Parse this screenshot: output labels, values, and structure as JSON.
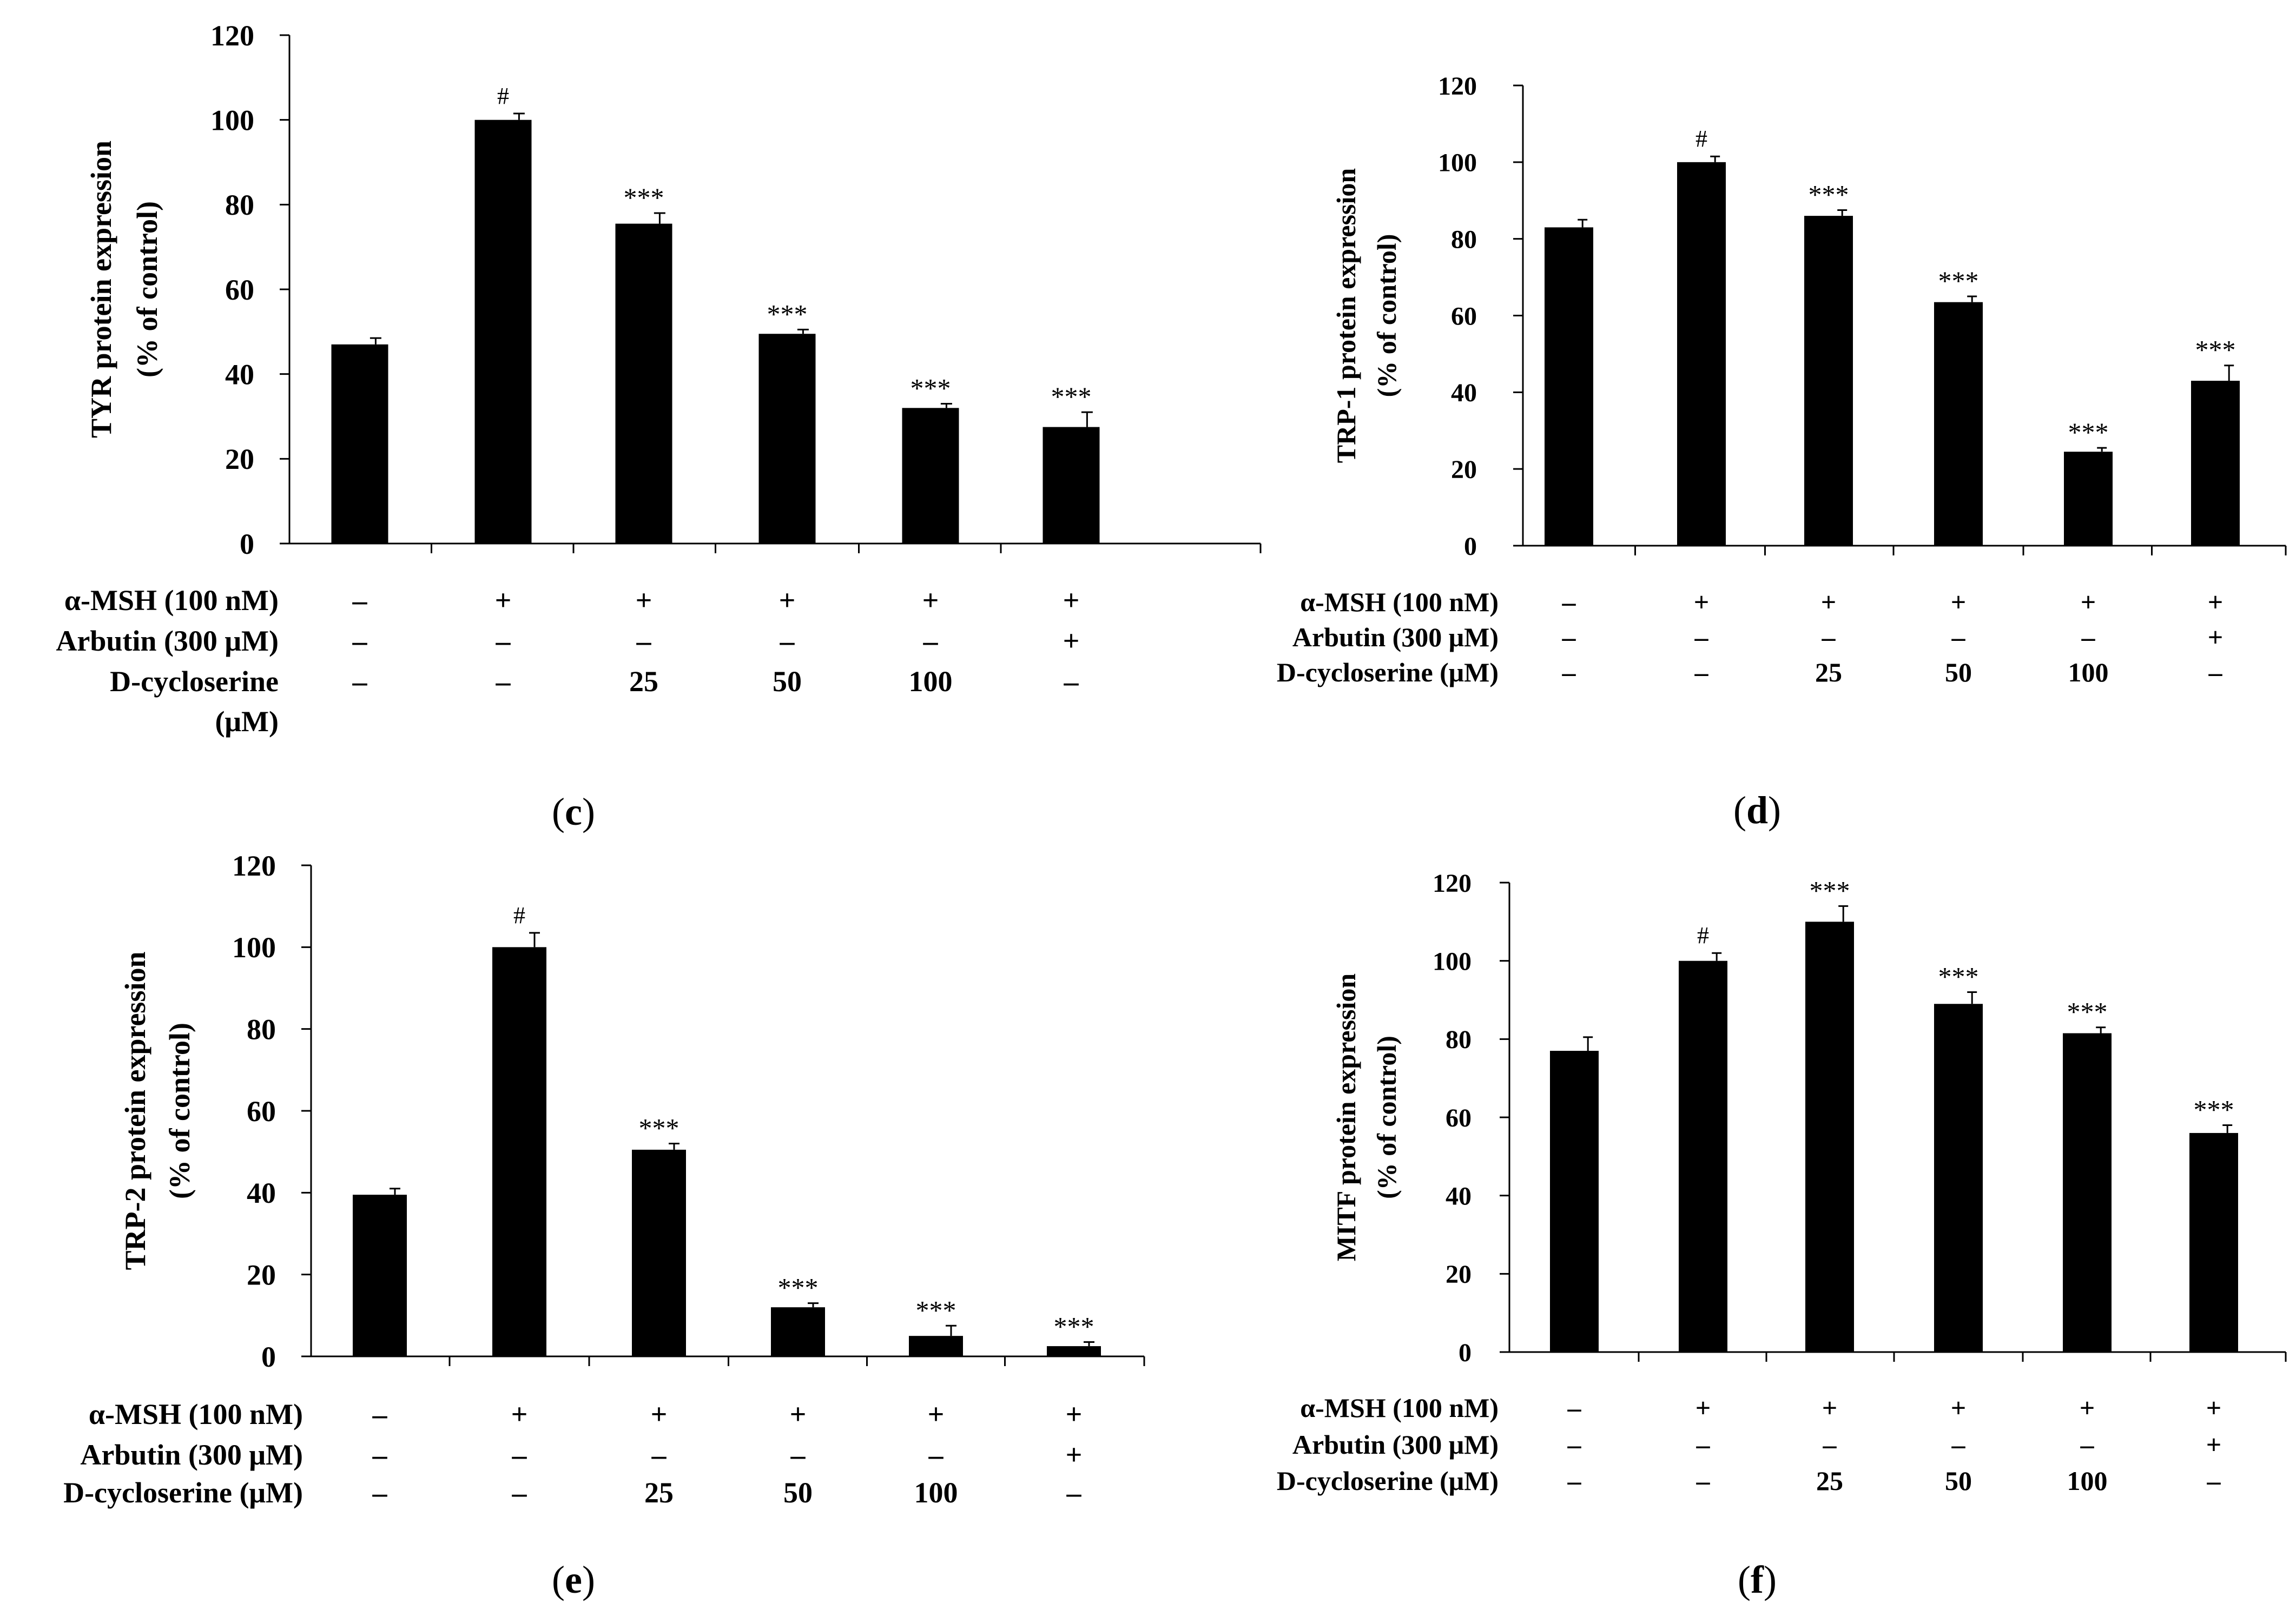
{
  "colors": {
    "bar": "#000000",
    "axis": "#000000",
    "background": "#ffffff"
  },
  "chart_data": [
    {
      "id": "c",
      "type": "bar",
      "panel_label": "(c)",
      "panel_letter": "c",
      "ylabel_line1": "TYR protein expression",
      "ylabel_line2": "(% of control)",
      "ylim": [
        0,
        120
      ],
      "yticks": [
        0,
        20,
        40,
        60,
        80,
        100,
        120
      ],
      "values": [
        47,
        100,
        75.5,
        49.5,
        32,
        27.5
      ],
      "errors": [
        1.5,
        1.5,
        2.5,
        1,
        1,
        3.5
      ],
      "annotations": [
        "",
        "#",
        "***",
        "***",
        "***",
        "***"
      ],
      "treatments": [
        {
          "label": "α-MSH (100 nM)",
          "values": [
            "–",
            "+",
            "+",
            "+",
            "+",
            "+"
          ]
        },
        {
          "label": "Arbutin (300 μM)",
          "values": [
            "–",
            "–",
            "–",
            "–",
            "–",
            "+"
          ]
        },
        {
          "label": "D-cycloserine",
          "label_cont": "(μM)",
          "values": [
            "–",
            "–",
            "25",
            "50",
            "100",
            "–"
          ]
        }
      ]
    },
    {
      "id": "d",
      "type": "bar",
      "panel_label": "(d)",
      "panel_letter": "d",
      "ylabel_line1": "TRP-1 protein expression",
      "ylabel_line2": "(% of control)",
      "ylim": [
        0,
        120
      ],
      "yticks": [
        0,
        20,
        40,
        60,
        80,
        100,
        120
      ],
      "values": [
        83,
        100,
        86,
        63.5,
        24.5,
        43
      ],
      "errors": [
        2,
        1.5,
        1.5,
        1.5,
        1,
        4
      ],
      "annotations": [
        "",
        "#",
        "***",
        "***",
        "***",
        "***"
      ],
      "treatments": [
        {
          "label": "α-MSH (100 nM)",
          "values": [
            "–",
            "+",
            "+",
            "+",
            "+",
            "+"
          ]
        },
        {
          "label": "Arbutin (300 μM)",
          "values": [
            "–",
            "–",
            "–",
            "–",
            "–",
            "+"
          ]
        },
        {
          "label": "D-cycloserine (μM)",
          "values": [
            "–",
            "–",
            "25",
            "50",
            "100",
            "–"
          ]
        }
      ]
    },
    {
      "id": "e",
      "type": "bar",
      "panel_label": "(e)",
      "panel_letter": "e",
      "ylabel_line1": "TRP-2 protein expression",
      "ylabel_line2": "(% of control)",
      "ylim": [
        0,
        120
      ],
      "yticks": [
        0,
        20,
        40,
        60,
        80,
        100,
        120
      ],
      "values": [
        39.5,
        100,
        50.5,
        12,
        5,
        2.5
      ],
      "errors": [
        1.5,
        3.5,
        1.5,
        1,
        2.5,
        1
      ],
      "annotations": [
        "",
        "#",
        "***",
        "***",
        "***",
        "***"
      ],
      "treatments": [
        {
          "label": "α-MSH (100 nM)",
          "values": [
            "–",
            "+",
            "+",
            "+",
            "+",
            "+"
          ]
        },
        {
          "label": "Arbutin (300 μM)",
          "values": [
            "–",
            "–",
            "–",
            "–",
            "–",
            "+"
          ]
        },
        {
          "label": "D-cycloserine (μM)",
          "values": [
            "–",
            "–",
            "25",
            "50",
            "100",
            "–"
          ]
        }
      ]
    },
    {
      "id": "f",
      "type": "bar",
      "panel_label": "(f)",
      "panel_letter": "f",
      "ylabel_line1": "MITF protein expression",
      "ylabel_line2": "(% of control)",
      "ylim": [
        0,
        120
      ],
      "yticks": [
        0,
        20,
        40,
        60,
        80,
        100,
        120
      ],
      "values": [
        77,
        100,
        110,
        89,
        81.5,
        56
      ],
      "errors": [
        3.5,
        2,
        4,
        3,
        1.5,
        2
      ],
      "annotations": [
        "",
        "#",
        "***",
        "***",
        "***",
        "***"
      ],
      "treatments": [
        {
          "label": "α-MSH (100 nM)",
          "values": [
            "–",
            "+",
            "+",
            "+",
            "+",
            "+"
          ]
        },
        {
          "label": "Arbutin (300 μM)",
          "values": [
            "–",
            "–",
            "–",
            "–",
            "–",
            "+"
          ]
        },
        {
          "label": "D-cycloserine (μM)",
          "values": [
            "–",
            "–",
            "25",
            "50",
            "100",
            "–"
          ]
        }
      ]
    }
  ]
}
